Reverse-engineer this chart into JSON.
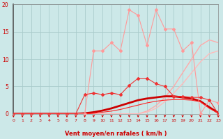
{
  "background_color": "#cce8e8",
  "grid_color": "#aacccc",
  "xlabel": "Vent moyen/en rafales ( km/h )",
  "xlim": [
    0,
    23
  ],
  "ylim": [
    0,
    20
  ],
  "xticks": [
    0,
    1,
    2,
    3,
    4,
    5,
    6,
    7,
    8,
    9,
    10,
    11,
    12,
    13,
    14,
    15,
    16,
    17,
    18,
    19,
    20,
    21,
    22,
    23
  ],
  "yticks": [
    0,
    5,
    10,
    15,
    20
  ],
  "x": [
    0,
    1,
    2,
    3,
    4,
    5,
    6,
    7,
    8,
    9,
    10,
    11,
    12,
    13,
    14,
    15,
    16,
    17,
    18,
    19,
    20,
    21,
    22,
    23
  ],
  "series": [
    {
      "name": "pink_jagged",
      "color": "#ff9999",
      "lw": 0.8,
      "marker": "D",
      "markersize": 2.0,
      "y": [
        0,
        0,
        0,
        0,
        0,
        0,
        0,
        0,
        0,
        11.5,
        11.5,
        13.0,
        11.5,
        19.0,
        18.0,
        12.5,
        19.0,
        15.5,
        15.5,
        11.5,
        13.0,
        0,
        2.5,
        2.0
      ]
    },
    {
      "name": "pink_straight_upper",
      "color": "#ffaaaa",
      "lw": 1.0,
      "marker": null,
      "y": [
        0,
        0,
        0,
        0,
        0,
        0,
        0,
        0,
        0,
        0,
        0,
        0,
        0,
        0,
        0,
        0.5,
        1.5,
        3.0,
        5.0,
        7.5,
        10.0,
        12.5,
        13.5,
        13.0
      ]
    },
    {
      "name": "pink_straight_lower",
      "color": "#ffbbbb",
      "lw": 1.0,
      "marker": null,
      "y": [
        0,
        0,
        0,
        0,
        0,
        0,
        0,
        0,
        0,
        0,
        0,
        0,
        0,
        0,
        0,
        0.3,
        1.0,
        2.2,
        3.8,
        5.5,
        7.5,
        9.5,
        11.0,
        11.5
      ]
    },
    {
      "name": "red_jagged",
      "color": "#ee3333",
      "lw": 0.8,
      "marker": "D",
      "markersize": 2.0,
      "y": [
        0,
        0,
        0,
        0,
        0,
        0,
        0,
        0,
        3.5,
        3.8,
        3.5,
        3.8,
        3.5,
        5.2,
        6.5,
        6.5,
        5.5,
        5.0,
        3.2,
        3.2,
        3.0,
        3.0,
        2.5,
        0.0
      ]
    },
    {
      "name": "red_thick_bell",
      "color": "#cc0000",
      "lw": 2.0,
      "marker": null,
      "y": [
        0,
        0,
        0,
        0,
        0,
        0,
        0,
        0,
        0.1,
        0.3,
        0.6,
        1.0,
        1.5,
        2.0,
        2.5,
        2.8,
        3.0,
        3.2,
        3.2,
        3.0,
        2.8,
        2.3,
        1.2,
        0.2
      ]
    },
    {
      "name": "red_thin_line",
      "color": "#ff2222",
      "lw": 0.8,
      "marker": null,
      "y": [
        0,
        0,
        0,
        0,
        0,
        0,
        0,
        0,
        0,
        0.1,
        0.3,
        0.5,
        0.8,
        1.2,
        1.6,
        2.0,
        2.3,
        2.5,
        2.6,
        2.6,
        2.5,
        2.2,
        1.0,
        0.1
      ]
    }
  ],
  "arrow_color": "#cc0000",
  "tick_color": "#cc0000",
  "axis_label_color": "#cc0000",
  "spine_color": "#888888",
  "left_spine_color": "#555555"
}
